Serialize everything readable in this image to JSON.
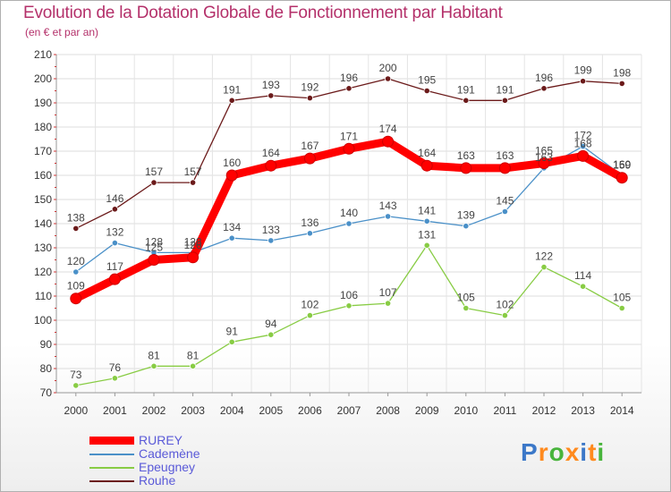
{
  "header": {
    "title": "Evolution de la Dotation Globale de Fonctionnement par Habitant",
    "subtitle": "(en € et par an)"
  },
  "chart_data": {
    "type": "line",
    "title": "Evolution de la Dotation Globale de Fonctionnement par Habitant",
    "subtitle": "(en € et par an)",
    "xlabel": "",
    "ylabel": "",
    "x": [
      "2000",
      "2001",
      "2002",
      "2003",
      "2004",
      "2005",
      "2006",
      "2007",
      "2008",
      "2009",
      "2010",
      "2011",
      "2012",
      "2013",
      "2014"
    ],
    "ylim": [
      70,
      210
    ],
    "yticks": [
      70,
      80,
      90,
      100,
      110,
      120,
      130,
      140,
      150,
      160,
      170,
      180,
      190,
      200,
      210
    ],
    "grid": true,
    "legend_position": "bottom-left",
    "series": [
      {
        "name": "RUREY",
        "color": "#ff0000",
        "values": [
          109,
          117,
          125,
          126,
          160,
          164,
          167,
          171,
          174,
          164,
          163,
          163,
          165,
          168,
          159
        ]
      },
      {
        "name": "Cademène",
        "color": "#4a90c8",
        "values": [
          120,
          132,
          128,
          128,
          134,
          133,
          136,
          140,
          143,
          141,
          139,
          145,
          163,
          172,
          160
        ]
      },
      {
        "name": "Epeugney",
        "color": "#88cc44",
        "values": [
          73,
          76,
          81,
          81,
          91,
          94,
          102,
          106,
          107,
          131,
          105,
          102,
          122,
          114,
          105
        ]
      },
      {
        "name": "Rouhe",
        "color": "#6b1a1a",
        "values": [
          138,
          146,
          157,
          157,
          191,
          193,
          192,
          196,
          200,
          195,
          191,
          191,
          196,
          199,
          198
        ]
      }
    ]
  },
  "legend": {
    "items": [
      "RUREY",
      "Cademène",
      "Epeugney",
      "Rouhe"
    ]
  },
  "logo": {
    "letters": [
      "P",
      "r",
      "o",
      "x",
      "i",
      "t",
      "i"
    ],
    "colors": [
      "#3c78c8",
      "#ff8a1e",
      "#48b43c",
      "#ff8a1e",
      "#3c78c8",
      "#ff8a1e",
      "#48b43c"
    ]
  }
}
